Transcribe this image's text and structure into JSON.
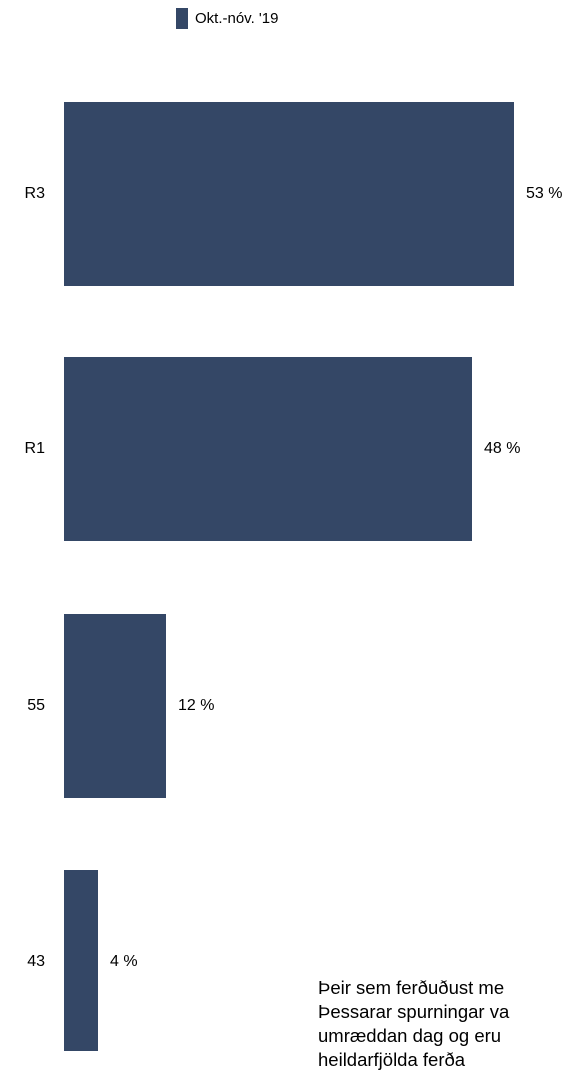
{
  "chart_data": {
    "type": "bar",
    "orientation": "horizontal",
    "categories": [
      "R3",
      "R1",
      "55",
      "43"
    ],
    "series": [
      {
        "name": "Okt.-nóv. '19",
        "values": [
          53,
          48,
          12,
          4
        ],
        "labels": [
          "53 %",
          "48 %",
          "12 %",
          "4 %"
        ]
      }
    ],
    "xlim": [
      0,
      53
    ],
    "legend_position": "top",
    "grid": false,
    "color": "#344766"
  },
  "note_lines": [
    "Þeir sem ferðuðust me",
    "Þessarar spurningar va",
    "umræddan dag og eru",
    "heildarfjölda ferða"
  ]
}
